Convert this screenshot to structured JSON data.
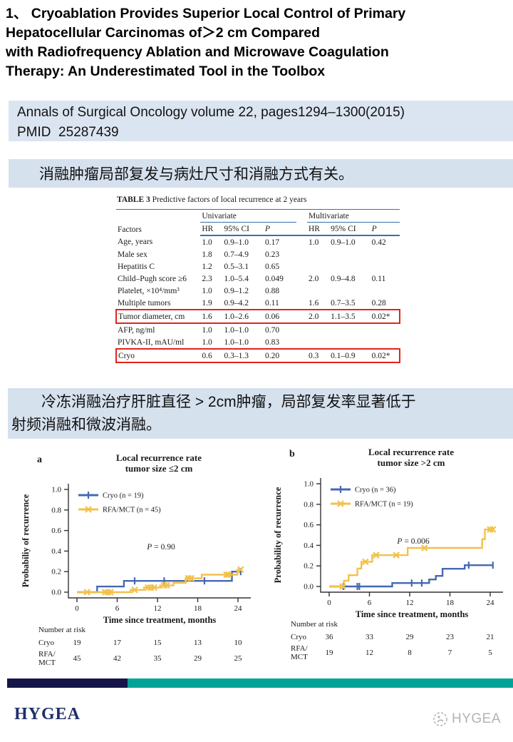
{
  "title": {
    "text": "1、 Cryoablation Provides Superior Local Control of Primary\nHepatocellular Carcinomas of＞2 cm Compared\nwith Radiofrequency Ablation and Microwave Coagulation\nTherapy: An Underestimated Tool in the Toolbox"
  },
  "citation": {
    "text": "Annals of Surgical Oncology volume 22, pages1294–1300(2015)\nPMID  25287439"
  },
  "highlight1": {
    "text": "消融肿瘤局部复发与病灶尺寸和消融方式有关。"
  },
  "highlight2": {
    "text": "　　冷冻消融治疗肝脏直径 > 2cm肿瘤，局部复发率显著低于\n射频消融和微波消融。"
  },
  "colors": {
    "bar_light_blue": "#dbe5f1",
    "bar_mid_blue": "#d6e1ee",
    "table_rule_blue": "#3a6fa7",
    "highlight_red": "#e3231c",
    "series_blue": "#4668b4",
    "series_yellow": "#f2c14a",
    "footer_navy": "#15154a",
    "footer_teal": "#00a398",
    "brand_navy": "#1f2d69",
    "watermark_gray": "#b3b3b3"
  },
  "table": {
    "caption_bold": "TABLE 3",
    "caption_rest": " Predictive factors of local recurrence at 2 years",
    "factor_header": "Factors",
    "col_groups": [
      "Univariate",
      "Multivariate"
    ],
    "sub_headers": [
      "HR",
      "95% CI",
      "P"
    ],
    "rows": [
      {
        "factor": "Age, years",
        "values": [
          "1.0",
          "0.9–1.0",
          "0.17",
          "1.0",
          "0.9–1.0",
          "0.42"
        ],
        "highlighted": false
      },
      {
        "factor": "Male sex",
        "values": [
          "1.8",
          "0.7–4.9",
          "0.23",
          "",
          "",
          ""
        ],
        "highlighted": false
      },
      {
        "factor": "Hepatitis C",
        "values": [
          "1.2",
          "0.5–3.1",
          "0.65",
          "",
          "",
          ""
        ],
        "highlighted": false
      },
      {
        "factor": "Child–Pugh score ≥6",
        "values": [
          "2.3",
          "1.0–5.4",
          "0.049",
          "2.0",
          "0.9–4.8",
          "0.11"
        ],
        "highlighted": false
      },
      {
        "factor": "Platelet, ×10⁴/mm³",
        "values": [
          "1.0",
          "0.9–1.2",
          "0.88",
          "",
          "",
          ""
        ],
        "highlighted": false
      },
      {
        "factor": "Multiple tumors",
        "values": [
          "1.9",
          "0.9–4.2",
          "0.11",
          "1.6",
          "0.7–3.5",
          "0.28"
        ],
        "highlighted": false
      },
      {
        "factor": "Tumor diameter, cm",
        "values": [
          "1.6",
          "1.0–2.6",
          "0.06",
          "2.0",
          "1.1–3.5",
          "0.02*"
        ],
        "highlighted": true
      },
      {
        "factor": "AFP, ng/ml",
        "values": [
          "1.0",
          "1.0–1.0",
          "0.70",
          "",
          "",
          ""
        ],
        "highlighted": false
      },
      {
        "factor": "PIVKA-II, mAU/ml",
        "values": [
          "1.0",
          "1.0–1.0",
          "0.83",
          "",
          "",
          ""
        ],
        "highlighted": false
      },
      {
        "factor": "Cryo",
        "values": [
          "0.6",
          "0.3–1.3",
          "0.20",
          "0.3",
          "0.1–0.9",
          "0.02*"
        ],
        "highlighted": true
      }
    ]
  },
  "chart_data": [
    {
      "type": "line",
      "panel_label": "a",
      "title": "Local recurrence rate",
      "subtitle": "tumor size ≤2 cm",
      "xlabel": "Time since treatment, months",
      "ylabel": "Probabiliy of recurrence",
      "p_label": "P = 0.90",
      "x_ticks": [
        0,
        6,
        12,
        18,
        24
      ],
      "y_ticks": [
        "0.0",
        "0.2",
        "0.4",
        "0.6",
        "0.8",
        "1.0"
      ],
      "xlim": [
        0,
        25
      ],
      "ylim": [
        0,
        1.0
      ],
      "grid": false,
      "legend_position": "upper-left",
      "series": [
        {
          "name": "Cryo (n = 19)",
          "color": "#4668b4",
          "marker": "plus",
          "steps": [
            [
              0,
              0
            ],
            [
              3,
              0
            ],
            [
              3,
              0.055
            ],
            [
              7,
              0.055
            ],
            [
              7,
              0.11
            ],
            [
              23.1,
              0.11
            ],
            [
              23.1,
              0.2
            ],
            [
              24.4,
              0.2
            ]
          ],
          "censors": [
            [
              8.6,
              0.11
            ],
            [
              13,
              0.11
            ],
            [
              19,
              0.11
            ],
            [
              24.4,
              0.2
            ]
          ]
        },
        {
          "name": "RFA/MCT (n = 45)",
          "color": "#f2c14a",
          "marker": "x",
          "steps": [
            [
              0,
              0
            ],
            [
              8,
              0
            ],
            [
              8,
              0.022
            ],
            [
              10,
              0.022
            ],
            [
              10,
              0.045
            ],
            [
              12.4,
              0.045
            ],
            [
              12.4,
              0.067
            ],
            [
              14.4,
              0.067
            ],
            [
              14.4,
              0.09
            ],
            [
              16.2,
              0.09
            ],
            [
              16.2,
              0.135
            ],
            [
              18.6,
              0.135
            ],
            [
              18.6,
              0.17
            ],
            [
              23.9,
              0.17
            ],
            [
              23.9,
              0.22
            ],
            [
              24.4,
              0.22
            ]
          ],
          "censors": [
            [
              1.5,
              0
            ],
            [
              4.2,
              0
            ],
            [
              4.6,
              0
            ],
            [
              5.0,
              0
            ],
            [
              8.6,
              0.022
            ],
            [
              10.6,
              0.045
            ],
            [
              11.0,
              0.045
            ],
            [
              11.5,
              0.045
            ],
            [
              13.0,
              0.067
            ],
            [
              13.4,
              0.067
            ],
            [
              16.6,
              0.135
            ],
            [
              17.0,
              0.135
            ],
            [
              22.3,
              0.17
            ],
            [
              22.6,
              0.17
            ],
            [
              24.4,
              0.22
            ]
          ]
        }
      ],
      "risk_table": {
        "label": "Number at risk",
        "rows": [
          {
            "name_lines": [
              "Cryo"
            ],
            "values": [
              "19",
              "17",
              "15",
              "13",
              "10"
            ]
          },
          {
            "name_lines": [
              "RFA/",
              "MCT"
            ],
            "values": [
              "45",
              "42",
              "35",
              "29",
              "25"
            ]
          }
        ]
      }
    },
    {
      "type": "line",
      "panel_label": "b",
      "title": "Local recurrence rate",
      "subtitle": "tumor size >2 cm",
      "xlabel": "Time since treatment, months",
      "ylabel": "Probability of recurrence",
      "p_label": "P = 0.006",
      "x_ticks": [
        0,
        6,
        12,
        18,
        24
      ],
      "y_ticks": [
        "0.0",
        "0.2",
        "0.4",
        "0.6",
        "0.8",
        "1.0"
      ],
      "xlim": [
        0,
        25
      ],
      "ylim": [
        0,
        1.0
      ],
      "grid": false,
      "legend_position": "upper-left",
      "series": [
        {
          "name": "Cryo (n = 36)",
          "color": "#4668b4",
          "marker": "plus",
          "steps": [
            [
              0,
              0
            ],
            [
              9.4,
              0
            ],
            [
              9.4,
              0.033
            ],
            [
              14.9,
              0.033
            ],
            [
              14.9,
              0.068
            ],
            [
              15.9,
              0.068
            ],
            [
              15.9,
              0.103
            ],
            [
              16.9,
              0.103
            ],
            [
              16.9,
              0.172
            ],
            [
              20.2,
              0.172
            ],
            [
              20.2,
              0.207
            ],
            [
              24.4,
              0.207
            ]
          ],
          "censors": [
            [
              2.1,
              0
            ],
            [
              4.2,
              0
            ],
            [
              4.5,
              0
            ],
            [
              12.3,
              0.033
            ],
            [
              13.8,
              0.033
            ],
            [
              20.8,
              0.207
            ],
            [
              24.4,
              0.207
            ]
          ]
        },
        {
          "name": "RFA/MCT (n = 19)",
          "color": "#f2c14a",
          "marker": "x",
          "steps": [
            [
              0,
              0
            ],
            [
              2.2,
              0
            ],
            [
              2.2,
              0.055
            ],
            [
              2.9,
              0.055
            ],
            [
              2.9,
              0.11
            ],
            [
              4.2,
              0.11
            ],
            [
              4.2,
              0.175
            ],
            [
              4.8,
              0.175
            ],
            [
              4.8,
              0.24
            ],
            [
              6.4,
              0.24
            ],
            [
              6.4,
              0.305
            ],
            [
              11.7,
              0.305
            ],
            [
              11.7,
              0.375
            ],
            [
              22.8,
              0.375
            ],
            [
              22.8,
              0.46
            ],
            [
              23.2,
              0.46
            ],
            [
              23.2,
              0.555
            ],
            [
              24.5,
              0.555
            ]
          ],
          "censors": [
            [
              2.0,
              0
            ],
            [
              5.4,
              0.24
            ],
            [
              7.0,
              0.305
            ],
            [
              10.0,
              0.305
            ],
            [
              14.2,
              0.375
            ],
            [
              24.0,
              0.555
            ],
            [
              24.4,
              0.555
            ]
          ]
        }
      ],
      "risk_table": {
        "label": "Number at risk",
        "rows": [
          {
            "name_lines": [
              "Cryo"
            ],
            "values": [
              "36",
              "33",
              "29",
              "23",
              "21"
            ]
          },
          {
            "name_lines": [
              "RFA/",
              "MCT"
            ],
            "values": [
              "19",
              "12",
              "8",
              "7",
              "5"
            ]
          }
        ]
      }
    }
  ],
  "footer": {
    "brand": "HYGEA",
    "watermark": "HYGEA"
  }
}
